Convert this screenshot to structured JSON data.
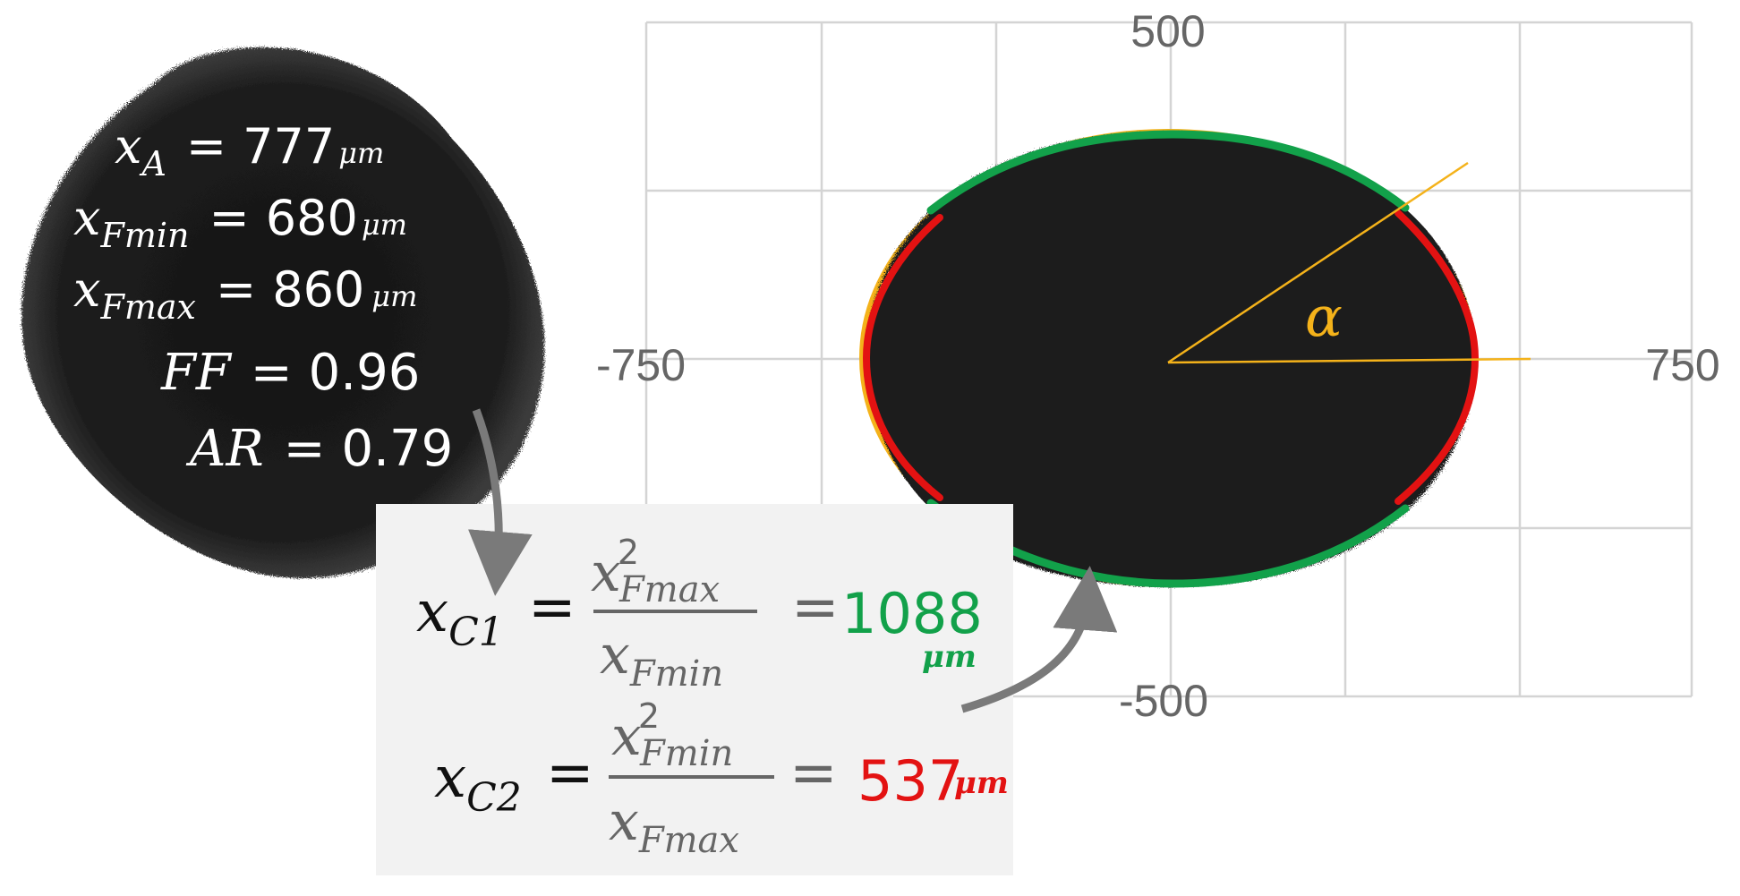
{
  "particle": {
    "xA": {
      "sym": "x",
      "sub": "A",
      "value": "777",
      "unit": "μm"
    },
    "xFmin": {
      "sym": "x",
      "sub": "Fmin",
      "value": "680",
      "unit": "μm"
    },
    "xFmax": {
      "sym": "x",
      "sub": "Fmax",
      "value": "860",
      "unit": "μm"
    },
    "FF": {
      "sym": "FF",
      "value": "0.96"
    },
    "AR": {
      "sym": "AR",
      "value": "0.79"
    }
  },
  "plot": {
    "x_min_label": "-750",
    "x_max_label": "750",
    "y_max_label": "500",
    "y_min_label": "-500",
    "angle_symbol": "α"
  },
  "formulas": {
    "eq": "=",
    "xC1": {
      "sym": "x",
      "sub": "C1",
      "num_sym": "x",
      "num_sup": "2",
      "num_sub": "Fmax",
      "den_sym": "x",
      "den_sub": "Fmin",
      "value": "1088",
      "unit": "μm"
    },
    "xC2": {
      "sym": "x",
      "sub": "C2",
      "num_sym": "x",
      "num_sup": "2",
      "num_sub": "Fmin",
      "den_sym": "x",
      "den_sub": "Fmax",
      "value": "537",
      "unit": "μm"
    }
  },
  "colors": {
    "green": "#12a14a",
    "red": "#e31212",
    "orange": "#f4b21a",
    "gray_text": "#666666",
    "grid": "#d4d4d4",
    "box_bg": "#f2f2f2",
    "particle": "#1a1a1a"
  }
}
